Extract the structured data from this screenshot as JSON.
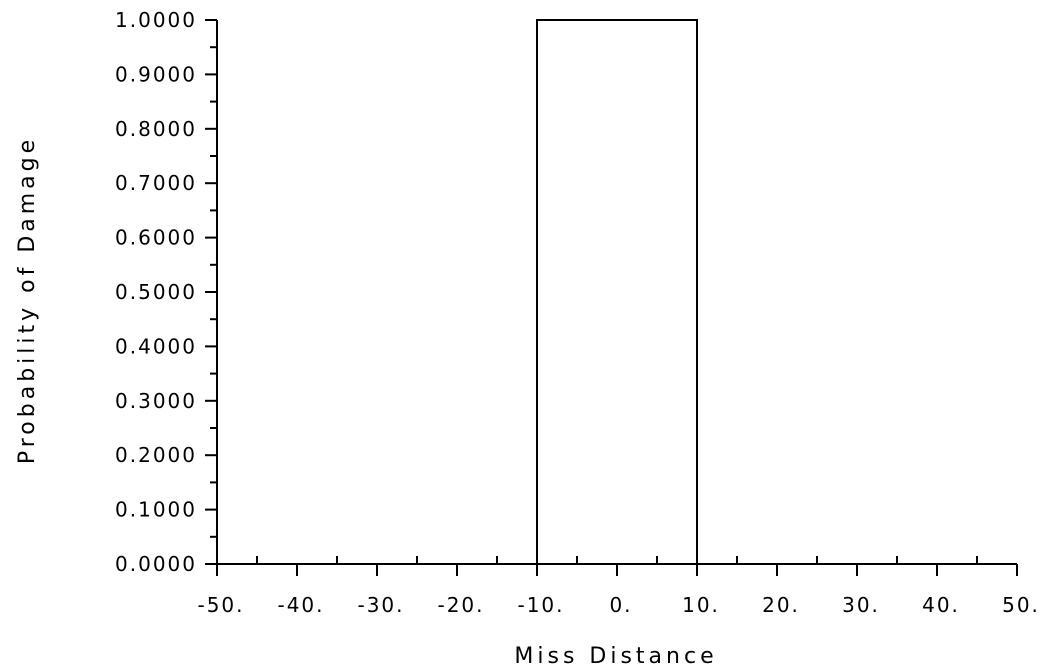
{
  "chart_data": {
    "type": "line",
    "title": "",
    "xlabel": "Miss Distance",
    "ylabel": "Probability of Damage",
    "xlim": [
      -50,
      50
    ],
    "ylim": [
      0,
      1
    ],
    "x_ticks": [
      -50,
      -40,
      -30,
      -20,
      -10,
      0,
      10,
      20,
      30,
      40,
      50
    ],
    "x_tick_labels": [
      "-50.",
      "-40.",
      "-30.",
      "-20.",
      "-10.",
      "0.",
      "10.",
      "20.",
      "30.",
      "40.",
      "50."
    ],
    "y_ticks": [
      0,
      0.1,
      0.2,
      0.3,
      0.4,
      0.5,
      0.6,
      0.7,
      0.8,
      0.9,
      1.0
    ],
    "y_tick_labels": [
      "0.0000",
      "0.1000",
      "0.2000",
      "0.3000",
      "0.4000",
      "0.5000",
      "0.6000",
      "0.7000",
      "0.8000",
      "0.9000",
      "1.0000"
    ],
    "x_minor_step": 5,
    "y_minor_step": 0.05,
    "grid": false,
    "legend": false,
    "series": [
      {
        "x": [
          -50,
          -10,
          -10,
          10,
          10,
          50
        ],
        "y": [
          0,
          0,
          1,
          1,
          0,
          0
        ]
      }
    ],
    "colors": {
      "line": "#000000",
      "axis": "#000000"
    }
  }
}
